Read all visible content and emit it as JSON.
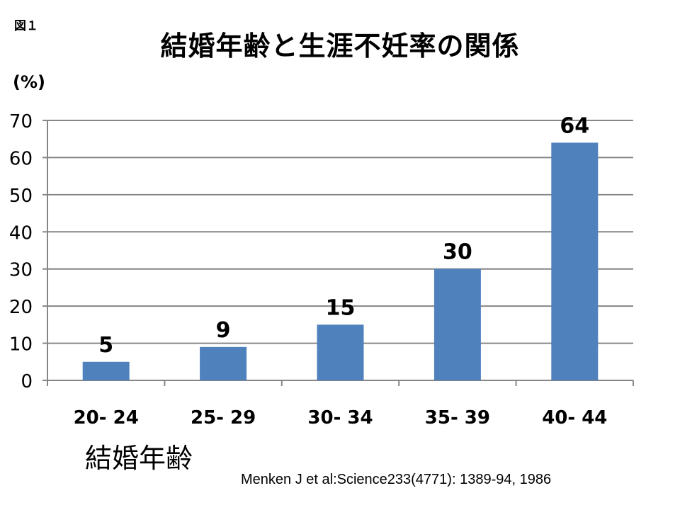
{
  "figure_label": "図１",
  "unit_label": "(%)",
  "citation": "Menken J et al:Science233(4771): 1389-94, 1986",
  "chart_data": {
    "type": "bar",
    "title": "結婚年齢と生涯不妊率の関係",
    "xlabel": "結婚年齢",
    "ylabel": "(%)",
    "categories": [
      "20- 24",
      "25- 29",
      "30- 34",
      "35- 39",
      "40- 44"
    ],
    "values": [
      5,
      9,
      15,
      30,
      64
    ],
    "data_labels": [
      "5",
      "9",
      "15",
      "30",
      "64"
    ],
    "ylim": [
      0,
      70
    ],
    "yticks": [
      0,
      10,
      20,
      30,
      40,
      50,
      60,
      70
    ],
    "grid": true,
    "legend": false,
    "bar_color": "#4f81bd",
    "grid_color": "#868686"
  }
}
